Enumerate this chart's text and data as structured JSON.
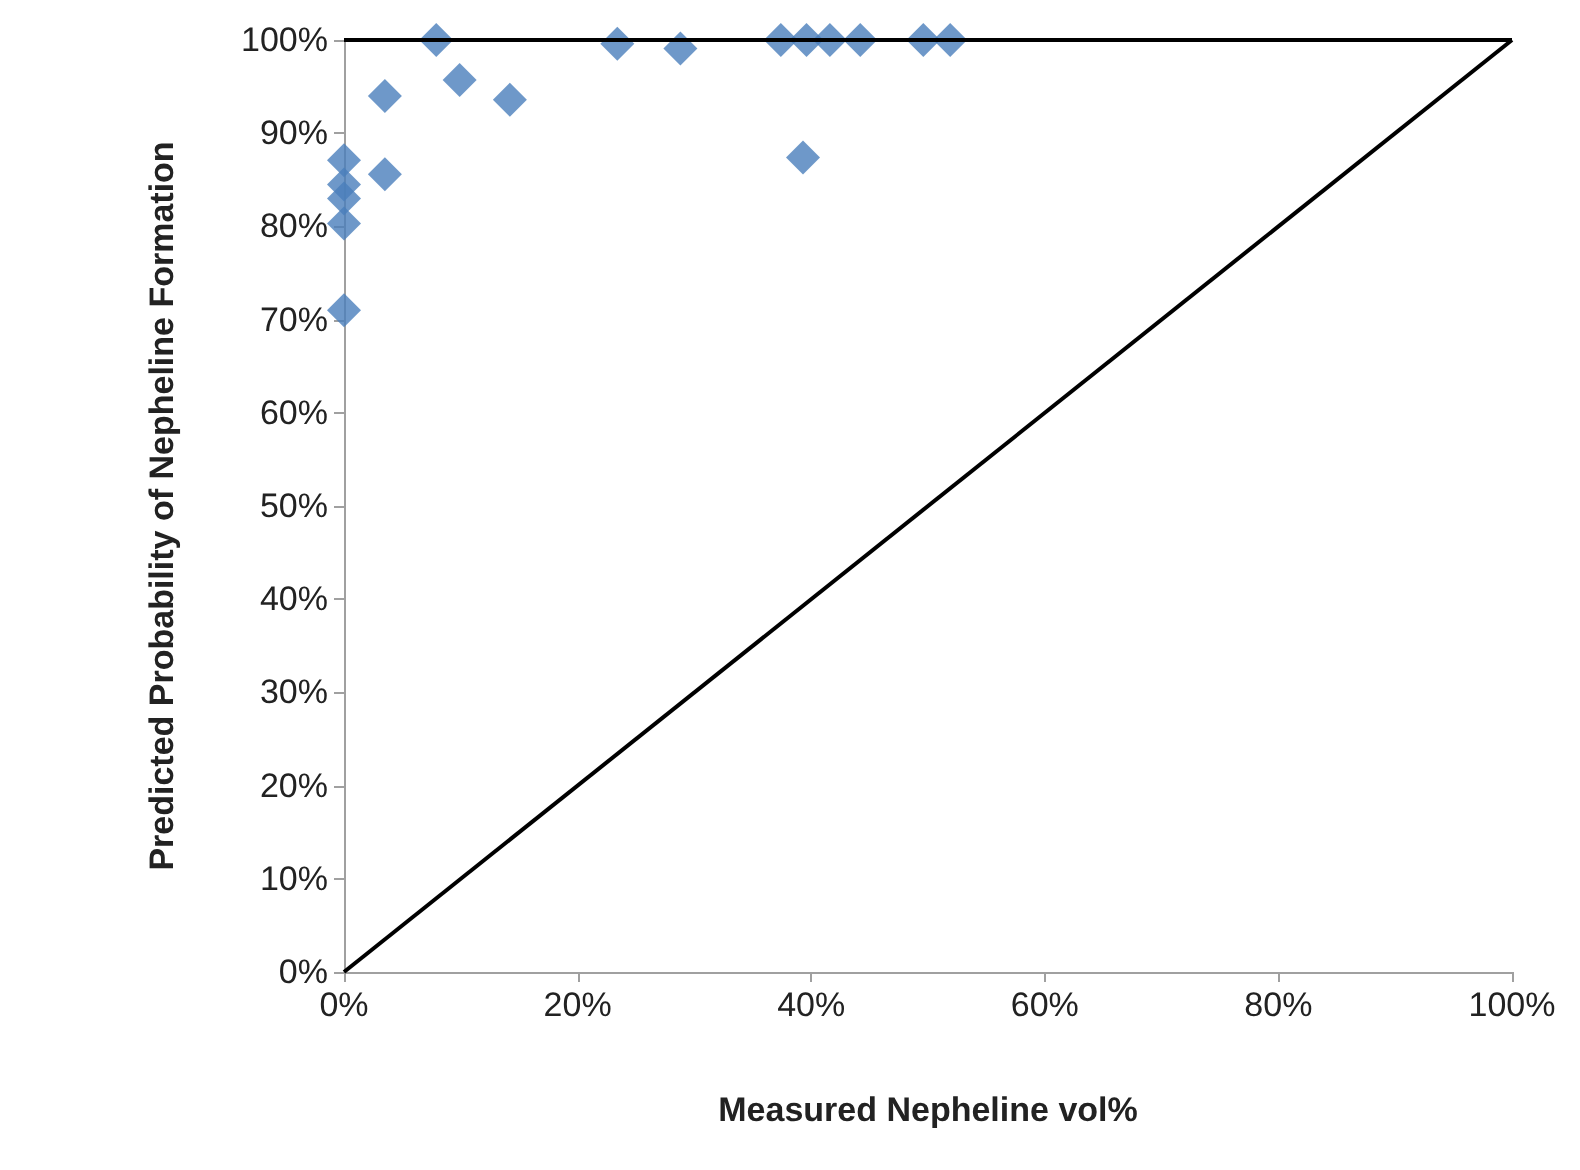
{
  "chart_data": {
    "type": "scatter",
    "xlabel": "Measured Nepheline vol%",
    "ylabel": "Predicted Probability of Nepheline Formation",
    "marker": "diamond",
    "grid": false,
    "xlim": [
      0,
      100
    ],
    "ylim": [
      0,
      100
    ],
    "xticks": [
      {
        "value": 0,
        "label": "0%"
      },
      {
        "value": 20,
        "label": "20%"
      },
      {
        "value": 40,
        "label": "40%"
      },
      {
        "value": 60,
        "label": "60%"
      },
      {
        "value": 80,
        "label": "80%"
      },
      {
        "value": 100,
        "label": "100%"
      }
    ],
    "yticks": [
      {
        "value": 0,
        "label": "0%"
      },
      {
        "value": 10,
        "label": "10%"
      },
      {
        "value": 20,
        "label": "20%"
      },
      {
        "value": 30,
        "label": "30%"
      },
      {
        "value": 40,
        "label": "40%"
      },
      {
        "value": 50,
        "label": "50%"
      },
      {
        "value": 60,
        "label": "60%"
      },
      {
        "value": 70,
        "label": "70%"
      },
      {
        "value": 80,
        "label": "80%"
      },
      {
        "value": 90,
        "label": "90%"
      },
      {
        "value": 100,
        "label": "100%"
      }
    ],
    "ref_lines": [
      {
        "axis": "y",
        "value": 100,
        "color": "#000000"
      }
    ],
    "series": [
      {
        "color": "#4a7ebb",
        "x": [
          7.9,
          3.5,
          9.9,
          14.2,
          0,
          3.5,
          0,
          0,
          0,
          0,
          23.4,
          28.8,
          39.3,
          37.4,
          39.6,
          41.6,
          44.2,
          49.6,
          51.9
        ],
        "values": [
          100,
          94,
          95.7,
          93.6,
          87.1,
          85.6,
          84.5,
          83,
          80.3,
          71,
          99.6,
          99.1,
          87.4,
          100,
          100,
          100,
          100,
          100,
          100
        ]
      },
      {
        "type": "line",
        "color": "#000000",
        "marker": "none",
        "x": [
          0,
          100
        ],
        "values": [
          0,
          100
        ]
      }
    ]
  }
}
